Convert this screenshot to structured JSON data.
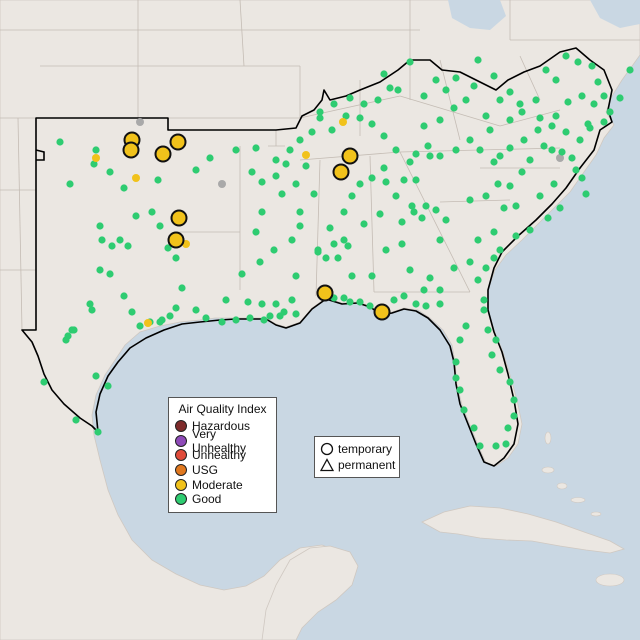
{
  "legend": {
    "title": "Air Quality Index",
    "categories": [
      {
        "label": "Hazardous",
        "color": "#7e2b2b"
      },
      {
        "label": "Very Unhealthy",
        "color": "#8e4ab8"
      },
      {
        "label": "Unhealthy",
        "color": "#e04b3a"
      },
      {
        "label": "USG",
        "color": "#e0781f"
      },
      {
        "label": "Moderate",
        "color": "#f1c21b"
      },
      {
        "label": "Good",
        "color": "#2ecc71"
      }
    ]
  },
  "shape_legend": {
    "temporary_label": "temporary",
    "permanent_label": "permanent"
  },
  "colors": {
    "water": "#c9d7e3",
    "land": "#ebe7e2",
    "land_border": "#bdb6b0",
    "region_outline": "#000000",
    "no_data": "#a9a9a9"
  }
}
